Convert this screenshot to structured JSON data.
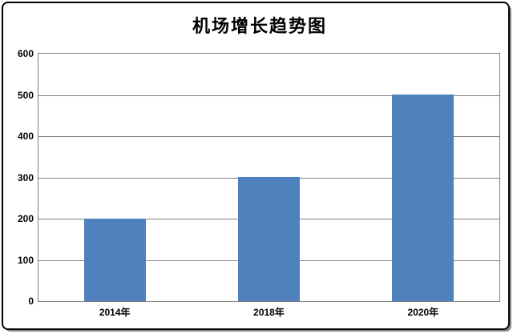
{
  "title": "机场增长趋势图",
  "colors": {
    "bar": "#4F81BD",
    "gridline": "#808080",
    "plot_border": "#808080",
    "frame_border": "#000000",
    "background": "#FFFFFF",
    "text": "#000000"
  },
  "chart_data": {
    "type": "bar",
    "title": "机场增长趋势图",
    "categories": [
      "2014年",
      "2018年",
      "2020年"
    ],
    "values": [
      200,
      300,
      500
    ],
    "xlabel": "",
    "ylabel": "",
    "ylim": [
      0,
      600
    ],
    "yticks": [
      0,
      100,
      200,
      300,
      400,
      500,
      600
    ],
    "grid": true,
    "legend": "none",
    "bar_color": "#4F81BD",
    "gridline_color": "#808080"
  }
}
